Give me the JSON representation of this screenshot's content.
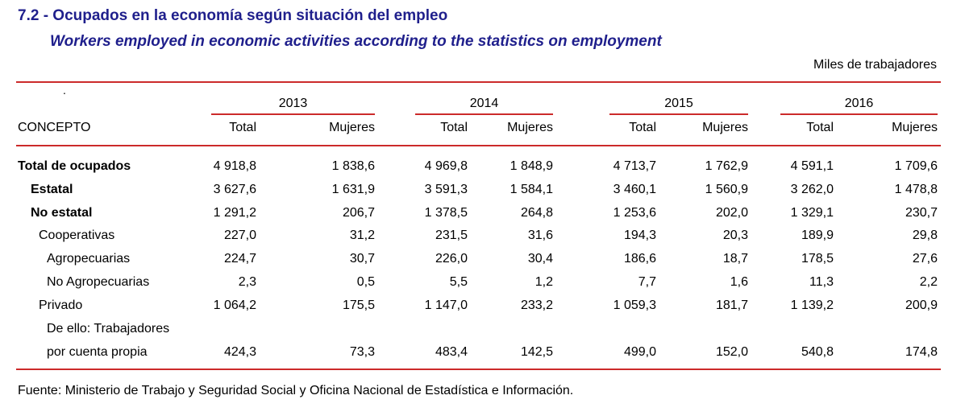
{
  "title": "7.2 - Ocupados en la economía según situación del empleo",
  "subtitle": "Workers employed in economic activities according to the statistics on employment",
  "units": "Miles de trabajadores",
  "dot": ".",
  "concept_header": "CONCEPTO",
  "years": [
    "2013",
    "2014",
    "2015",
    "2016"
  ],
  "col_total": "Total",
  "col_mujeres": "Mujeres",
  "rows": [
    {
      "label": "Total de ocupados",
      "values": [
        "4 918,8",
        "1 838,6",
        "4 969,8",
        "1 848,9",
        "4 713,7",
        "1 762,9",
        "4 591,1",
        "1 709,6"
      ]
    },
    {
      "label": "Estatal",
      "values": [
        "3 627,6",
        "1 631,9",
        "3 591,3",
        "1 584,1",
        "3 460,1",
        "1 560,9",
        "3 262,0",
        "1 478,8"
      ]
    },
    {
      "label": "No estatal",
      "values": [
        "1 291,2",
        "206,7",
        "1 378,5",
        "264,8",
        "1 253,6",
        "202,0",
        "1 329,1",
        "230,7"
      ]
    },
    {
      "label": "Cooperativas",
      "values": [
        "227,0",
        "31,2",
        "231,5",
        "31,6",
        "194,3",
        "20,3",
        "189,9",
        "29,8"
      ]
    },
    {
      "label": "Agropecuarias",
      "values": [
        "224,7",
        "30,7",
        "226,0",
        "30,4",
        "186,6",
        "18,7",
        "178,5",
        "27,6"
      ]
    },
    {
      "label": "No Agropecuarias",
      "values": [
        "2,3",
        "0,5",
        "5,5",
        "1,2",
        "7,7",
        "1,6",
        "11,3",
        "2,2"
      ]
    },
    {
      "label": "Privado",
      "values": [
        "1 064,2",
        "175,5",
        "1 147,0",
        "233,2",
        "1 059,3",
        "181,7",
        "1 139,2",
        "200,9"
      ]
    },
    {
      "label": "De ello: Trabajadores",
      "values": []
    },
    {
      "label": "por cuenta propia",
      "values": [
        "424,3",
        "73,3",
        "483,4",
        "142,5",
        "499,0",
        "152,0",
        "540,8",
        "174,8"
      ]
    }
  ],
  "source": "Fuente: Ministerio de Trabajo y Seguridad Social y Oficina Nacional de Estadística e Información."
}
